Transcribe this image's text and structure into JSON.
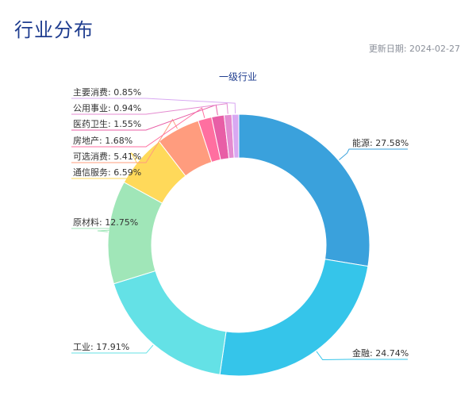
{
  "page": {
    "title": "行业分布",
    "update_label": "更新日期: 2024-02-27"
  },
  "chart_data": {
    "type": "pie",
    "title": "一级行业",
    "donut": true,
    "labels": [
      "能源",
      "金融",
      "工业",
      "原材料",
      "通信服务",
      "可选消费",
      "房地产",
      "医药卫生",
      "公用事业",
      "主要消费"
    ],
    "values": [
      27.58,
      24.74,
      17.91,
      12.75,
      6.59,
      5.41,
      1.68,
      1.55,
      0.94,
      0.85
    ],
    "display_labels": [
      "能源: 27.58%",
      "金融: 24.74%",
      "工业: 17.91%",
      "原材料: 12.75%",
      "通信服务: 6.59%",
      "可选消费: 5.41%",
      "房地产: 1.68%",
      "医药卫生: 1.55%",
      "公用事业: 0.94%",
      "主要消费: 0.85%"
    ],
    "colors": [
      "#3aa1dc",
      "#35c5ea",
      "#64e1e6",
      "#a0e6b8",
      "#ffd95a",
      "#ff9c7e",
      "#ff6fa0",
      "#e85ea6",
      "#e48bd0",
      "#d8a8f2"
    ]
  }
}
